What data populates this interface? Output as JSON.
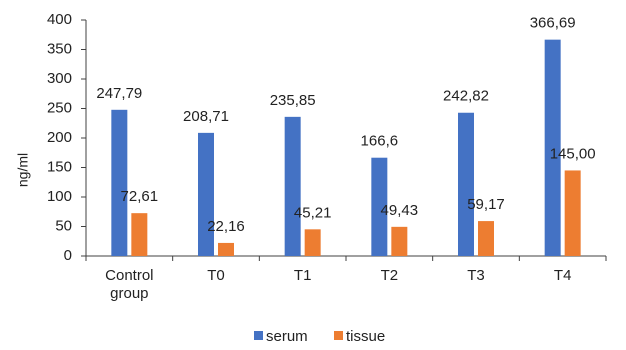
{
  "chart_data": {
    "type": "bar",
    "title": "",
    "xlabel": "",
    "ylabel": "ng/ml",
    "ylim": [
      0,
      400
    ],
    "yticks": [
      0,
      50,
      100,
      150,
      200,
      250,
      300,
      350,
      400
    ],
    "grid": false,
    "legend_position": "bottom",
    "categories": [
      [
        "Control",
        "group"
      ],
      [
        "T0"
      ],
      [
        "T1"
      ],
      [
        "T2"
      ],
      [
        "T3"
      ],
      [
        "T4"
      ]
    ],
    "series": [
      {
        "name": "serum",
        "color": "#4472C4",
        "values": [
          247.79,
          208.71,
          235.85,
          166.6,
          242.82,
          366.69
        ],
        "labels": [
          "247,79",
          "208,71",
          "235,85",
          "166,6",
          "242,82",
          "366,69"
        ]
      },
      {
        "name": "tissue",
        "color": "#ED7D31",
        "values": [
          72.61,
          22.16,
          45.21,
          49.43,
          59.17,
          145.0
        ],
        "labels": [
          "72,61",
          "22,16",
          "45,21",
          "49,43",
          "59,17",
          "145,00"
        ]
      }
    ]
  }
}
